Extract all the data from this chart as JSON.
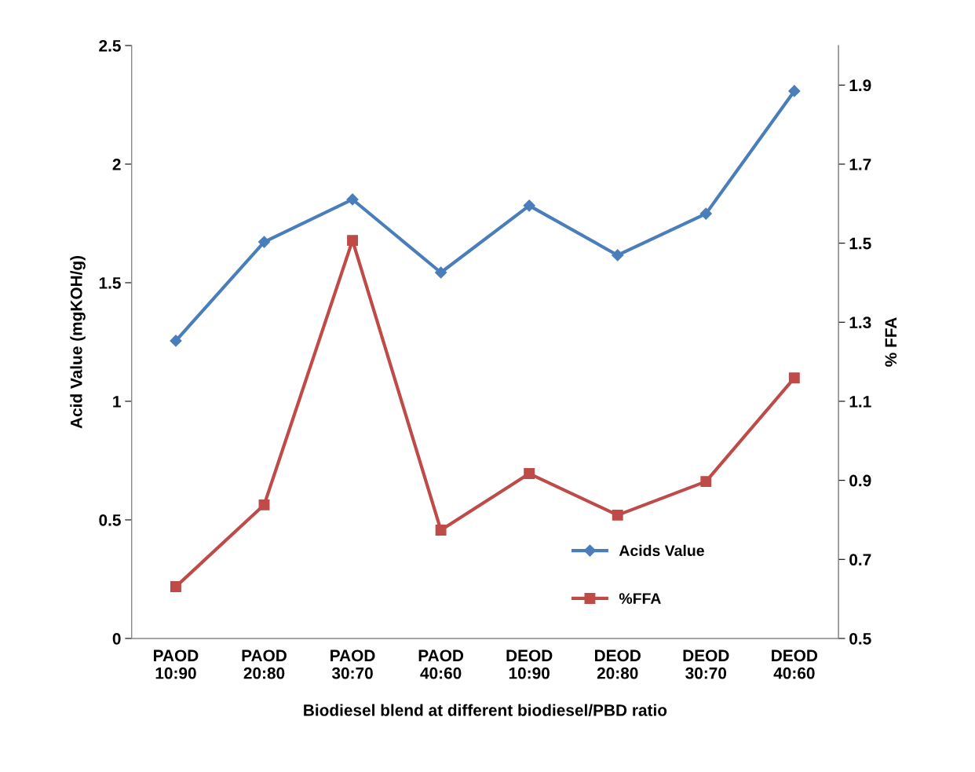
{
  "chart_data": {
    "type": "line",
    "xlabel": "Biodiesel blend at different biodiesel/PBD ratio",
    "ylabel": "Acid Value (mgKOH/g)",
    "y2label": "% FFA",
    "categories": [
      "PAOD\n10:90",
      "PAOD\n20:80",
      "PAOD\n30:70",
      "PAOD\n40:60",
      "DEOD\n10:90",
      "DEOD\n20:80",
      "DEOD\n30:70",
      "DEOD\n40:60"
    ],
    "series": [
      {
        "name": "Acids Value",
        "color": "#4a7ebb",
        "marker": "diamond",
        "values": [
          1.255,
          1.672,
          1.851,
          1.543,
          1.825,
          1.616,
          1.791,
          2.308
        ]
      },
      {
        "name": "%FFA",
        "color": "#be4b48",
        "marker": "square",
        "axis": "y2",
        "values": [
          0.631,
          0.838,
          1.507,
          0.774,
          0.917,
          0.812,
          0.897,
          1.159
        ]
      }
    ],
    "ylim": [
      0,
      2.5
    ],
    "yticks": [
      0,
      0.5,
      1,
      1.5,
      2,
      2.5
    ],
    "y2lim": [
      0.5,
      2.0
    ],
    "y2ticks": [
      0.5,
      0.7,
      0.9,
      1.1,
      1.3,
      1.5,
      1.7,
      1.9
    ],
    "grid": false,
    "legend": "bottom right",
    "line_style": "solid"
  }
}
